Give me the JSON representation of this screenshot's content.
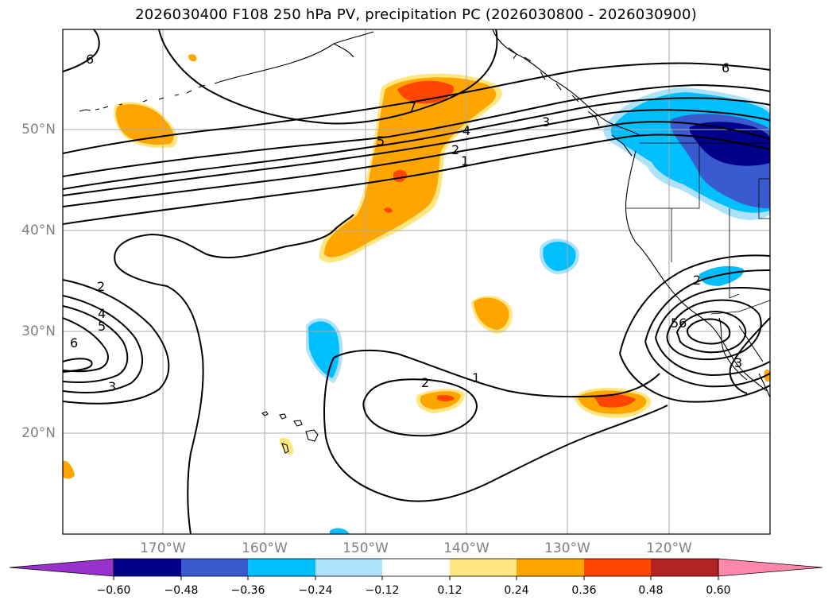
{
  "title": "2026030400 F108 250 hPa PV, precipitation PC (2026030800 - 2026030900)",
  "lat_labels": [
    "50°N",
    "40°N",
    "30°N",
    "20°N"
  ],
  "lon_labels": [
    "170°W",
    "160°W",
    "150°W",
    "140°W",
    "130°W",
    "120°W"
  ],
  "contour_labels": [
    "6",
    "7",
    "5",
    "4",
    "3",
    "2",
    "1",
    "2",
    "4",
    "5",
    "6",
    "3",
    "2",
    "1",
    "2",
    "56",
    "3",
    "6"
  ],
  "colorbar": {
    "ticks": [
      "−0.60",
      "−0.48",
      "−0.36",
      "−0.24",
      "−0.12",
      "0.12",
      "0.24",
      "0.36",
      "0.48",
      "0.60"
    ],
    "colors": [
      "#9932cc",
      "#00008b",
      "#3a5bcf",
      "#00bfff",
      "#aee2fb",
      "#ffffff",
      "#ffe680",
      "#ffa500",
      "#ff4500",
      "#b22222",
      "#ff88aa"
    ]
  },
  "colors": {
    "coast": "#000000",
    "grid": "#a9a9a9",
    "contour": "#000000"
  }
}
